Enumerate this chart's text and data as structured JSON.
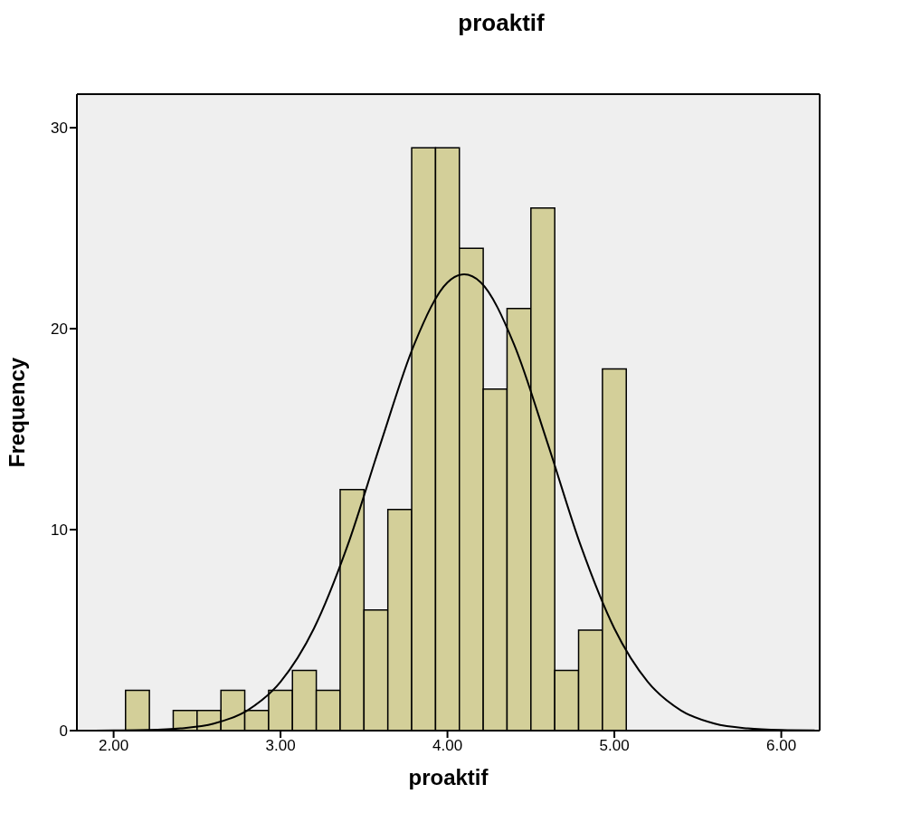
{
  "chart_data": {
    "type": "histogram",
    "title": "proaktif",
    "xlabel": "proaktif",
    "ylabel": "Frequency",
    "bins": [
      2.0714,
      2.2143,
      2.3571,
      2.5,
      2.6429,
      2.7857,
      2.9286,
      3.0714,
      3.2143,
      3.3571,
      3.5,
      3.6429,
      3.7857,
      3.9286,
      4.0714,
      4.2143,
      4.3571,
      4.5,
      4.6429,
      4.7857,
      4.9286,
      5.0714
    ],
    "values": [
      2,
      0,
      1,
      1,
      2,
      1,
      2,
      3,
      2,
      12,
      6,
      11,
      29,
      29,
      24,
      17,
      21,
      26,
      3,
      5,
      18
    ],
    "color": "#d3cf99",
    "series": [
      {
        "type": "line",
        "color": "#000000",
        "x": [
          1.8,
          2.0,
          2.2,
          2.4,
          2.6,
          2.8,
          3.0,
          3.2,
          3.4,
          3.6,
          3.8,
          4.0,
          4.1,
          4.2,
          4.4,
          4.6,
          4.8,
          5.0,
          5.2,
          5.4,
          5.6,
          5.8,
          6.0,
          6.2
        ],
        "values": [
          0,
          0.01,
          0.03,
          0.11,
          0.35,
          1.0,
          2.43,
          5.08,
          9.17,
          14.3,
          19.2,
          22.3,
          22.7,
          22.3,
          19.2,
          14.3,
          9.17,
          5.08,
          2.43,
          1.0,
          0.35,
          0.11,
          0.03,
          0.01
        ]
      }
    ],
    "xlim": [
      1.78,
      6.23
    ],
    "xticks": [
      {
        "value": 2,
        "label": "2.00"
      },
      {
        "value": 3,
        "label": "3.00"
      },
      {
        "value": 4,
        "label": "4.00"
      },
      {
        "value": 5,
        "label": "5.00"
      },
      {
        "value": 6,
        "label": "6.00"
      }
    ],
    "ylim": [
      0,
      31.67
    ],
    "yticks": [
      0,
      10,
      20,
      30
    ],
    "grid": false,
    "marker": "none",
    "line_style": "solid"
  }
}
